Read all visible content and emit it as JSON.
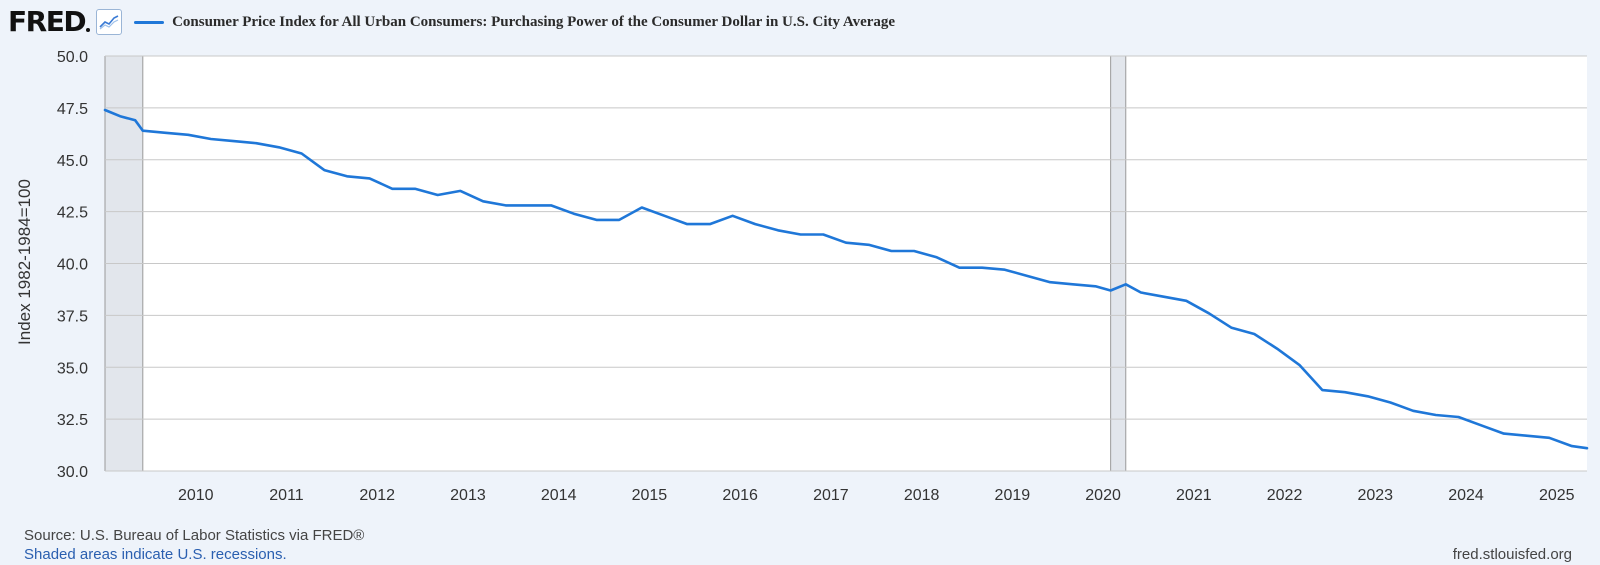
{
  "header": {
    "logo_text": "FRED",
    "series_title": "Consumer Price Index for All Urban Consumers: Purchasing Power of the Consumer Dollar in U.S. City Average",
    "chart_icon": "line-chart-icon"
  },
  "footer": {
    "source": "Source: U.S. Bureau of Labor Statistics via FRED®",
    "recession_note": "Shaded areas indicate U.S. recessions.",
    "url": "fred.stlouisfed.org"
  },
  "colors": {
    "series": "#1f77d8",
    "background": "#eef3fa",
    "recession": "#e2e6ec",
    "grid": "#c8c8c8"
  },
  "chart_data": {
    "type": "line",
    "ylabel": "Index 1982-1984=100",
    "ylim": [
      30.0,
      50.0
    ],
    "xlim": [
      "2009-01",
      "2025-05"
    ],
    "y_ticks": [
      "30.0",
      "32.5",
      "35.0",
      "37.5",
      "40.0",
      "42.5",
      "45.0",
      "47.5",
      "50.0"
    ],
    "x_ticks": [
      "2010",
      "2011",
      "2012",
      "2013",
      "2014",
      "2015",
      "2016",
      "2017",
      "2018",
      "2019",
      "2020",
      "2021",
      "2022",
      "2023",
      "2024",
      "2025"
    ],
    "grid": true,
    "recessions": [
      [
        "2009-01",
        "2009-06"
      ],
      [
        "2020-02",
        "2020-04"
      ]
    ],
    "series": [
      {
        "x": [
          "2009-01",
          "2009-03",
          "2009-05",
          "2009-06",
          "2009-09",
          "2009-12",
          "2010-03",
          "2010-06",
          "2010-09",
          "2010-12",
          "2011-03",
          "2011-06",
          "2011-09",
          "2011-12",
          "2012-03",
          "2012-06",
          "2012-09",
          "2012-12",
          "2013-03",
          "2013-06",
          "2013-09",
          "2013-12",
          "2014-03",
          "2014-06",
          "2014-09",
          "2014-12",
          "2015-03",
          "2015-06",
          "2015-09",
          "2015-12",
          "2016-03",
          "2016-06",
          "2016-09",
          "2016-12",
          "2017-03",
          "2017-06",
          "2017-09",
          "2017-12",
          "2018-03",
          "2018-06",
          "2018-09",
          "2018-12",
          "2019-03",
          "2019-06",
          "2019-09",
          "2019-12",
          "2020-02",
          "2020-04",
          "2020-06",
          "2020-09",
          "2020-12",
          "2021-03",
          "2021-06",
          "2021-09",
          "2021-12",
          "2022-03",
          "2022-06",
          "2022-09",
          "2022-12",
          "2023-03",
          "2023-06",
          "2023-09",
          "2023-12",
          "2024-03",
          "2024-06",
          "2024-09",
          "2024-12",
          "2025-03",
          "2025-05"
        ],
        "values": [
          47.4,
          47.1,
          46.9,
          46.4,
          46.3,
          46.2,
          46.0,
          45.9,
          45.8,
          45.6,
          45.3,
          44.5,
          44.2,
          44.1,
          43.6,
          43.6,
          43.3,
          43.5,
          43.0,
          42.8,
          42.8,
          42.8,
          42.4,
          42.1,
          42.1,
          42.7,
          42.3,
          41.9,
          41.9,
          42.3,
          41.9,
          41.6,
          41.4,
          41.4,
          41.0,
          40.9,
          40.6,
          40.6,
          40.3,
          39.8,
          39.8,
          39.7,
          39.4,
          39.1,
          39.0,
          38.9,
          38.7,
          39.0,
          38.6,
          38.4,
          38.2,
          37.6,
          36.9,
          36.6,
          35.9,
          35.1,
          33.9,
          33.8,
          33.6,
          33.3,
          32.9,
          32.7,
          32.6,
          32.2,
          31.8,
          31.7,
          31.6,
          31.2,
          31.1
        ]
      }
    ]
  }
}
